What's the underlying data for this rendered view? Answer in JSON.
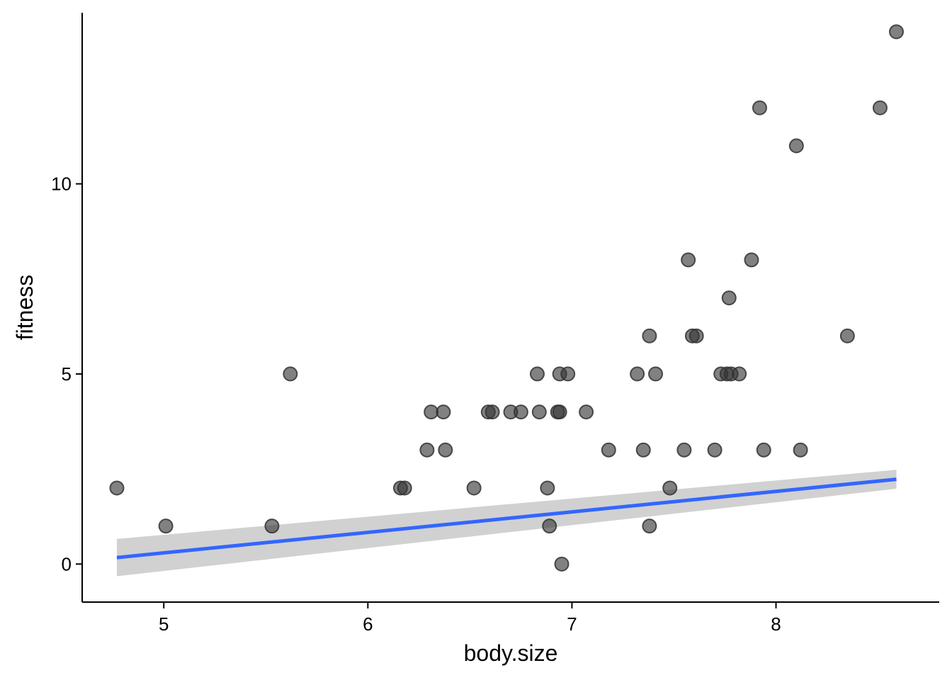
{
  "colors": {
    "points": "#333333",
    "fit_line": "#3366FF",
    "ribbon": "#999999",
    "axis": "#000000"
  },
  "chart_data": {
    "type": "scatter",
    "title": "",
    "xlabel": "body.size",
    "ylabel": "fitness",
    "xlim": [
      4.6,
      8.8
    ],
    "ylim": [
      -1.0,
      14.5
    ],
    "x_ticks": [
      5,
      6,
      7,
      8
    ],
    "y_ticks": [
      0,
      5,
      10
    ],
    "grid": false,
    "points": [
      {
        "x": 4.77,
        "y": 2
      },
      {
        "x": 5.01,
        "y": 1
      },
      {
        "x": 5.53,
        "y": 1
      },
      {
        "x": 5.62,
        "y": 5
      },
      {
        "x": 6.16,
        "y": 2
      },
      {
        "x": 6.18,
        "y": 2
      },
      {
        "x": 6.29,
        "y": 3
      },
      {
        "x": 6.31,
        "y": 4
      },
      {
        "x": 6.37,
        "y": 4
      },
      {
        "x": 6.38,
        "y": 3
      },
      {
        "x": 6.52,
        "y": 2
      },
      {
        "x": 6.59,
        "y": 4
      },
      {
        "x": 6.61,
        "y": 4
      },
      {
        "x": 6.7,
        "y": 4
      },
      {
        "x": 6.75,
        "y": 4
      },
      {
        "x": 6.83,
        "y": 5
      },
      {
        "x": 6.84,
        "y": 4
      },
      {
        "x": 6.88,
        "y": 2
      },
      {
        "x": 6.89,
        "y": 1
      },
      {
        "x": 6.93,
        "y": 4
      },
      {
        "x": 6.94,
        "y": 5
      },
      {
        "x": 6.94,
        "y": 4
      },
      {
        "x": 6.95,
        "y": 0
      },
      {
        "x": 6.98,
        "y": 5
      },
      {
        "x": 7.07,
        "y": 4
      },
      {
        "x": 7.18,
        "y": 3
      },
      {
        "x": 7.32,
        "y": 5
      },
      {
        "x": 7.35,
        "y": 3
      },
      {
        "x": 7.38,
        "y": 6
      },
      {
        "x": 7.38,
        "y": 1
      },
      {
        "x": 7.41,
        "y": 5
      },
      {
        "x": 7.48,
        "y": 2
      },
      {
        "x": 7.55,
        "y": 3
      },
      {
        "x": 7.57,
        "y": 8
      },
      {
        "x": 7.59,
        "y": 6
      },
      {
        "x": 7.61,
        "y": 6
      },
      {
        "x": 7.7,
        "y": 3
      },
      {
        "x": 7.73,
        "y": 5
      },
      {
        "x": 7.76,
        "y": 5
      },
      {
        "x": 7.77,
        "y": 7
      },
      {
        "x": 7.78,
        "y": 5
      },
      {
        "x": 7.82,
        "y": 5
      },
      {
        "x": 7.88,
        "y": 8
      },
      {
        "x": 7.92,
        "y": 12
      },
      {
        "x": 7.94,
        "y": 3
      },
      {
        "x": 8.1,
        "y": 11
      },
      {
        "x": 8.12,
        "y": 3
      },
      {
        "x": 8.35,
        "y": 6
      },
      {
        "x": 8.51,
        "y": 12
      },
      {
        "x": 8.59,
        "y": 14
      }
    ],
    "fit_line": {
      "method": "linear",
      "x": [
        4.77,
        8.59
      ],
      "y": [
        0.17,
        2.23
      ],
      "ci_lower": [
        -0.32,
        1.98
      ],
      "ci_upper": [
        0.66,
        2.48
      ]
    }
  }
}
